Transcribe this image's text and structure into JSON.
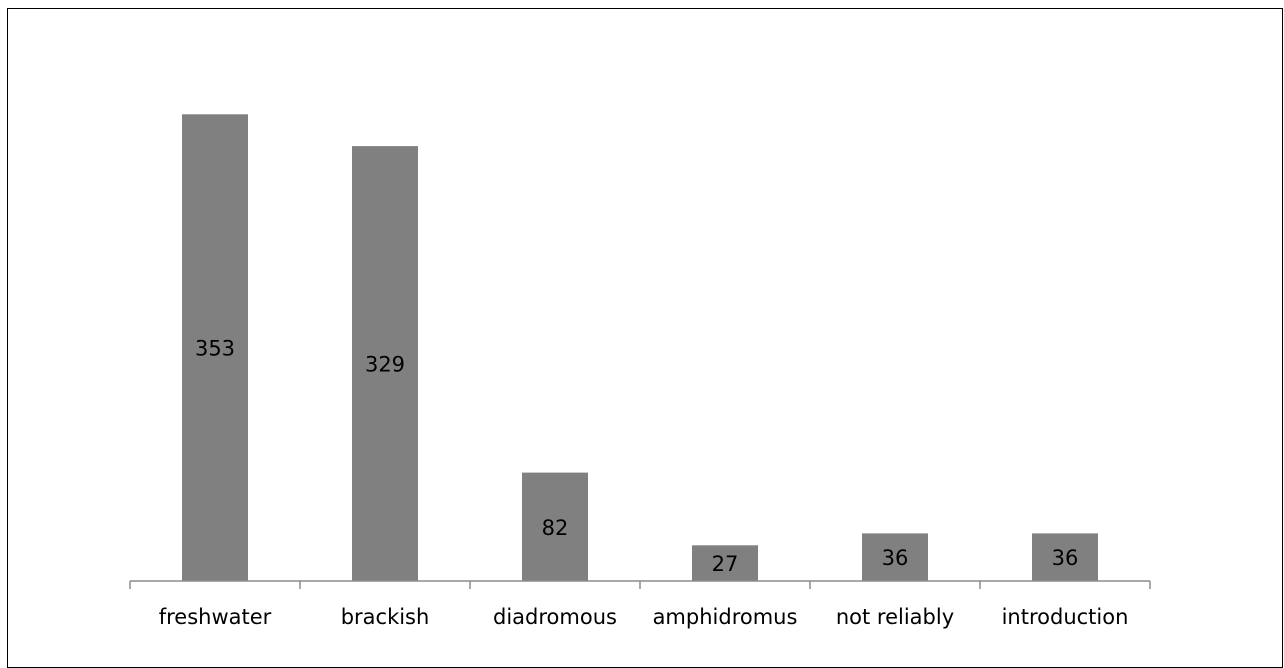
{
  "chart_data": {
    "type": "bar",
    "categories": [
      "freshwater",
      "brackish",
      "diadromous",
      "amphidromus",
      "not reliably",
      "introduction"
    ],
    "values": [
      353,
      329,
      82,
      27,
      36,
      36
    ],
    "title": "",
    "xlabel": "",
    "ylabel": "",
    "ylim": [
      0,
      400
    ],
    "grid": false,
    "legend": "none",
    "data_labels": "inside-center",
    "colors": {
      "bar": "#808080",
      "axis": "#8c8c8c",
      "text": "#000000"
    }
  }
}
